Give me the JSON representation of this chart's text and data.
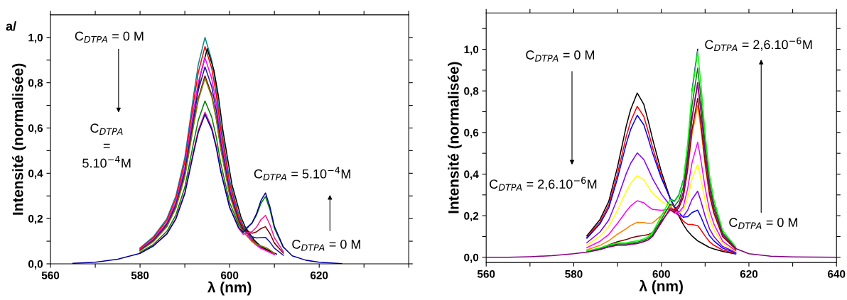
{
  "chart_data": [
    {
      "type": "line",
      "xlabel": "λ (nm)",
      "ylabel": "Intensité (normalisée)",
      "line_style": "solid",
      "xlim": [
        560,
        640
      ],
      "ylim": [
        0,
        1.1
      ],
      "xticks": [
        560,
        {
          "value": 570,
          "label": null
        },
        580,
        {
          "value": 590,
          "label": null
        },
        600,
        {
          "value": 610,
          "label": null
        },
        620,
        {
          "value": 630,
          "label": null
        },
        {
          "value": 640,
          "label": null
        }
      ],
      "yticks": [
        {
          "value": 0,
          "label": "0,0"
        },
        {
          "value": 0.1,
          "label": null
        },
        {
          "value": 0.2,
          "label": "0,2"
        },
        {
          "value": 0.3,
          "label": null
        },
        {
          "value": 0.4,
          "label": "0,4"
        },
        {
          "value": 0.5,
          "label": null
        },
        {
          "value": 0.6,
          "label": "0,6"
        },
        {
          "value": 0.7,
          "label": null
        },
        {
          "value": 0.8,
          "label": "0,8"
        },
        {
          "value": 0.9,
          "label": null
        },
        {
          "value": 1.0,
          "label": "1,0"
        }
      ],
      "annotations": [
        "a/",
        "C$_{DTPA}$ = 0 M",
        "C$_{DTPA}$\n=\n5.10$^{−4}$M",
        "C$_{DTPA}$ = 5.10$^{−4}$M",
        "C$_{DTPA}$ = 0 M"
      ],
      "x": [
        565,
        570,
        575,
        580,
        583,
        586,
        588,
        590,
        592,
        593,
        594.5,
        596,
        597,
        598,
        600,
        602,
        603,
        604,
        605,
        606,
        607,
        608,
        609,
        610,
        612,
        614,
        617,
        620,
        625
      ],
      "series": [
        {
          "color": "#008b8b",
          "values": [
            null,
            null,
            null,
            0.07,
            0.12,
            0.2,
            0.3,
            0.47,
            0.75,
            0.88,
            1,
            0.9,
            0.78,
            0.62,
            0.37,
            0.22,
            0.17,
            0.14,
            0.11,
            0.09,
            0.075,
            null,
            null,
            null,
            null,
            null,
            null,
            null,
            null
          ]
        },
        {
          "color": "#ff0000",
          "values": [
            null,
            null,
            null,
            0.067,
            0.115,
            0.192,
            0.288,
            0.451,
            0.72,
            0.845,
            0.96,
            0.864,
            0.749,
            0.595,
            0.355,
            0.211,
            0.163,
            0.134,
            0.106,
            0.086,
            0.072,
            0.062,
            0.053,
            0.043,
            null,
            null,
            null,
            null,
            null
          ]
        },
        {
          "color": "#000000",
          "x": [
            580.5,
            583.5,
            586.5,
            588.5,
            590.5,
            592.5,
            593.5,
            595,
            596.5,
            597.5,
            598.5,
            600.5,
            602.5,
            603.5,
            604.5,
            605.5,
            606.5,
            607.5,
            608.5,
            609.5,
            610.5
          ],
          "values": [
            0.067,
            0.114,
            0.19,
            0.285,
            0.447,
            0.713,
            0.836,
            0.95,
            0.855,
            0.741,
            0.589,
            0.352,
            0.209,
            0.162,
            0.133,
            0.105,
            0.086,
            0.071,
            0.062,
            0.052,
            0.043
          ]
        },
        {
          "color": "#ff00ff",
          "values": [
            null,
            null,
            null,
            0.064,
            0.109,
            0.182,
            0.273,
            0.428,
            0.683,
            0.801,
            0.91,
            0.819,
            0.71,
            0.564,
            0.337,
            0.2,
            0.155,
            0.127,
            0.1,
            0.082,
            0.068,
            0.059,
            0.05,
            0.041,
            null,
            null,
            null,
            null,
            null
          ]
        },
        {
          "color": "#1a1aa6",
          "values": [
            null,
            null,
            null,
            0.061,
            0.104,
            0.174,
            0.261,
            0.409,
            0.653,
            0.766,
            0.87,
            0.783,
            0.679,
            0.539,
            0.323,
            0.195,
            0.154,
            0.137,
            0.12,
            0.114,
            0.116,
            0.117,
            0.096,
            0.069,
            0.038,
            null,
            null,
            null,
            null
          ]
        },
        {
          "color": "#800000",
          "values": [
            null,
            null,
            null,
            0.058,
            0.1,
            0.166,
            0.249,
            0.39,
            0.623,
            0.73,
            0.83,
            0.747,
            0.647,
            0.515,
            0.309,
            0.19,
            0.152,
            0.144,
            0.135,
            0.141,
            0.156,
            0.164,
            0.134,
            0.092,
            0.047,
            null,
            null,
            null,
            null
          ]
        },
        {
          "color": "#808000",
          "values": [
            null,
            null,
            null,
            0.057,
            0.098,
            0.164,
            0.246,
            0.385,
            0.615,
            0.722,
            0.82,
            0.738,
            0.64,
            0.508,
            0.303,
            0.181,
            0.141,
            0.12,
            0.098,
            0.086,
            0.079,
            0.073,
            0.061,
            0.047,
            null,
            null,
            null,
            null,
            null
          ]
        },
        {
          "color": "#008000",
          "values": [
            null,
            null,
            null,
            0.05,
            0.086,
            0.144,
            0.216,
            0.338,
            0.54,
            0.634,
            0.72,
            0.648,
            0.562,
            0.446,
            0.271,
            0.173,
            0.147,
            0.163,
            0.179,
            0.215,
            0.267,
            0.297,
            0.24,
            0.157,
            0.072,
            null,
            null,
            null,
            null
          ]
        },
        {
          "color": "#ff1493",
          "values": [
            null,
            null,
            null,
            0.047,
            0.08,
            0.134,
            0.201,
            0.315,
            0.503,
            0.59,
            0.67,
            0.603,
            0.523,
            0.415,
            0.251,
            0.157,
            0.131,
            0.137,
            0.142,
            0.162,
            0.195,
            0.214,
            0.173,
            0.115,
            0.054,
            null,
            null,
            null,
            null
          ]
        },
        {
          "color": "#000099",
          "values": [
            0.002,
            0.007,
            0.02,
            0.046,
            0.079,
            0.132,
            0.198,
            0.31,
            0.495,
            0.581,
            0.66,
            0.594,
            0.515,
            0.409,
            0.249,
            0.161,
            0.139,
            0.16,
            0.181,
            0.221,
            0.28,
            0.313,
            0.252,
            0.165,
            0.074,
            0.035,
            0.016,
            0.007,
            0.001
          ]
        }
      ]
    },
    {
      "type": "line",
      "xlabel": "λ (nm)",
      "ylabel": "Intensité (normalisée)",
      "line_style": "solid",
      "xlim": [
        560,
        640
      ],
      "ylim": [
        -0.025,
        1.175
      ],
      "xticks": [
        560,
        {
          "value": 570,
          "label": null
        },
        580,
        {
          "value": 590,
          "label": null
        },
        600,
        {
          "value": 610,
          "label": null
        },
        620,
        {
          "value": 630,
          "label": null
        },
        640
      ],
      "yticks": [
        {
          "value": 0,
          "label": "0,0"
        },
        {
          "value": 0.1,
          "label": null
        },
        {
          "value": 0.2,
          "label": "0,2"
        },
        {
          "value": 0.3,
          "label": null
        },
        {
          "value": 0.4,
          "label": "0,4"
        },
        {
          "value": 0.5,
          "label": null
        },
        {
          "value": 0.6,
          "label": "0,6"
        },
        {
          "value": 0.7,
          "label": null
        },
        {
          "value": 0.8,
          "label": "0,8"
        },
        {
          "value": 0.9,
          "label": null
        },
        {
          "value": 1.0,
          "label": "1,0"
        },
        {
          "value": 1.1,
          "label": null
        }
      ],
      "annotations": [
        "C$_{DTPA}$ = 0 M",
        "C$_{DTPA}$ = 2,6.10$^{−6}$M",
        "C$_{DTPA}$ = 2,6.10$^{−6}$M",
        "C$_{DTPA}$ = 0 M"
      ],
      "x": [
        560,
        565,
        570,
        575,
        580,
        583,
        586,
        588,
        590,
        592,
        593,
        594.5,
        596,
        597,
        598,
        600,
        602,
        603,
        604,
        605,
        606,
        607,
        608.3,
        609,
        610,
        611,
        612,
        614,
        617,
        620,
        625,
        630,
        640
      ],
      "series": [
        {
          "color": "#000000",
          "values": [
            null,
            null,
            null,
            null,
            null,
            0.103,
            0.182,
            0.269,
            0.435,
            0.632,
            0.711,
            0.79,
            0.735,
            0.656,
            0.569,
            0.411,
            0.284,
            0.237,
            0.198,
            0.158,
            0.126,
            0.103,
            0.079,
            0.071,
            0.059,
            0.047,
            0.04,
            0.028,
            0.016,
            null,
            null,
            null,
            null
          ]
        },
        {
          "color": "#ff0000",
          "values": [
            null,
            null,
            null,
            null,
            null,
            0.096,
            0.17,
            0.25,
            0.402,
            0.582,
            0.654,
            0.726,
            0.677,
            0.606,
            0.528,
            0.39,
            0.281,
            0.238,
            0.204,
            0.174,
            0.159,
            0.158,
            0.152,
            0.133,
            0.102,
            0.075,
            0.058,
            0.035,
            0.018,
            null,
            null,
            null,
            null
          ]
        },
        {
          "color": "#0000ff",
          "values": [
            null,
            null,
            null,
            null,
            null,
            0.092,
            0.161,
            0.238,
            0.38,
            0.547,
            0.615,
            0.683,
            0.637,
            0.572,
            0.501,
            0.38,
            0.286,
            0.244,
            0.216,
            0.193,
            0.195,
            0.215,
            0.227,
            0.196,
            0.146,
            0.104,
            0.079,
            0.044,
            0.021,
            null,
            null,
            null,
            null
          ]
        },
        {
          "color": "#8000ff",
          "values": [
            null,
            null,
            null,
            null,
            null,
            0.07,
            0.122,
            0.179,
            0.283,
            0.403,
            0.452,
            0.502,
            0.47,
            0.425,
            0.378,
            0.304,
            0.249,
            0.217,
            0.201,
            0.196,
            0.226,
            0.278,
            0.318,
            0.273,
            0.198,
            0.137,
            0.1,
            0.052,
            0.024,
            null,
            null,
            null,
            null
          ]
        },
        {
          "color": "#ffff00",
          "values": [
            null,
            null,
            null,
            null,
            null,
            0.059,
            0.101,
            0.147,
            0.227,
            0.317,
            0.355,
            0.393,
            0.372,
            0.34,
            0.308,
            0.269,
            0.245,
            0.219,
            0.213,
            0.224,
            0.284,
            0.375,
            0.446,
            0.381,
            0.273,
            0.186,
            0.133,
            0.066,
            0.028,
            null,
            null,
            null,
            null
          ]
        },
        {
          "color": "#ff00ff",
          "values": [
            null,
            null,
            null,
            null,
            null,
            0.046,
            0.077,
            0.11,
            0.164,
            0.221,
            0.247,
            0.272,
            0.262,
            0.244,
            0.23,
            0.226,
            0.231,
            0.212,
            0.217,
            0.242,
            0.329,
            0.454,
            0.553,
            0.472,
            0.335,
            0.226,
            0.16,
            0.077,
            0.032,
            null,
            null,
            null,
            null
          ]
        },
        {
          "color": "#ff8000",
          "values": [
            null,
            null,
            null,
            null,
            null,
            0.036,
            0.057,
            0.08,
            0.111,
            0.138,
            0.153,
            0.168,
            0.167,
            0.163,
            0.165,
            0.201,
            0.242,
            0.227,
            0.244,
            0.288,
            0.414,
            0.59,
            0.731,
            0.622,
            0.44,
            0.295,
            0.208,
            0.098,
            0.038,
            null,
            null,
            null,
            null
          ]
        },
        {
          "color": "#800000",
          "values": [
            null,
            null,
            null,
            null,
            null,
            0.028,
            0.043,
            0.06,
            0.075,
            0.085,
            0.093,
            0.101,
            0.105,
            0.109,
            0.12,
            0.173,
            0.227,
            0.217,
            0.238,
            0.289,
            0.424,
            0.613,
            0.764,
            0.65,
            0.459,
            0.306,
            0.215,
            0.1,
            0.039,
            null,
            null,
            null,
            null
          ]
        },
        {
          "color": "#e0218a",
          "values": [
            null,
            null,
            null,
            null,
            null,
            0.025,
            0.037,
            0.05,
            0.058,
            0.058,
            0.062,
            0.066,
            0.075,
            0.083,
            0.1,
            0.166,
            0.232,
            0.224,
            0.249,
            0.307,
            0.457,
            0.664,
            0.83,
            0.706,
            0.498,
            0.332,
            0.232,
            0.108,
            0.042,
            null,
            null,
            null,
            null
          ]
        },
        {
          "color": "#0000a0",
          "values": [
            null,
            null,
            null,
            null,
            null,
            null,
            null,
            null,
            null,
            null,
            null,
            null,
            null,
            null,
            null,
            null,
            0.28,
            0.27,
            0.3,
            0.37,
            null,
            0.8,
            1,
            null,
            null,
            null,
            null,
            null,
            null,
            null,
            null,
            null,
            null
          ]
        },
        {
          "color": "#008000",
          "values": [
            null,
            null,
            null,
            null,
            null,
            0.027,
            0.041,
            0.055,
            0.064,
            0.064,
            0.068,
            0.073,
            0.082,
            0.091,
            0.109,
            0.182,
            0.255,
            0.246,
            0.273,
            0.337,
            0.501,
            0.728,
            0.91,
            0.774,
            0.546,
            0.364,
            0.255,
            0.118,
            0.046,
            null,
            null,
            null,
            null
          ]
        },
        {
          "color": "#00ff00",
          "values": [
            null,
            null,
            null,
            null,
            null,
            0.03,
            0.045,
            0.059,
            0.069,
            0.069,
            0.074,
            0.079,
            0.089,
            0.099,
            0.119,
            0.198,
            0.277,
            0.267,
            0.297,
            0.366,
            0.545,
            0.792,
            0.99,
            0.842,
            0.594,
            0.396,
            0.277,
            0.129,
            0.05,
            null,
            null,
            null,
            null
          ]
        },
        {
          "color": "#800080",
          "values": [
            0,
            0,
            0.003,
            0.008,
            0.017,
            0.025,
            0.038,
            0.05,
            0.059,
            0.059,
            0.063,
            0.067,
            0.076,
            0.084,
            0.101,
            0.168,
            0.235,
            0.227,
            0.252,
            0.311,
            0.462,
            0.672,
            0.84,
            0.714,
            0.504,
            0.336,
            0.235,
            0.109,
            0.042,
            0.017,
            0.005,
            0.002,
            0
          ]
        }
      ]
    }
  ]
}
